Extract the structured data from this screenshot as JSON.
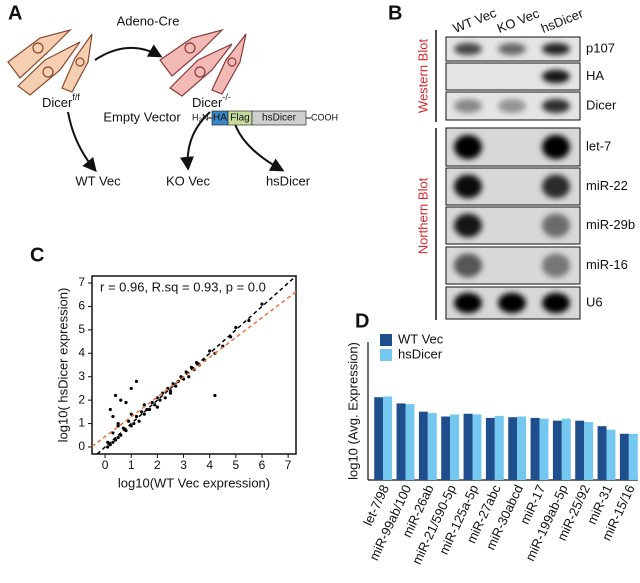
{
  "panel_labels": {
    "a": "A",
    "b": "B",
    "c": "C",
    "d": "D"
  },
  "panel_a": {
    "treatment": "Adeno-Cre",
    "parent": {
      "name": "Dicer",
      "superscript": "f/f"
    },
    "knockout": {
      "name": "Dicer",
      "superscript": "-/-"
    },
    "empty_vector": "Empty Vector",
    "construct": {
      "n_terminus": "H₂N",
      "tag1": "HA",
      "tag2": "Flag",
      "protein": "hsDicer",
      "c_terminus": "COOH"
    },
    "outcomes": [
      "WT Vec",
      "KO Vec",
      "hsDicer"
    ]
  },
  "panel_b": {
    "lanes": [
      "WT Vec",
      "KO Vec",
      "hsDicer"
    ],
    "western": {
      "label": "Western Blot",
      "rows": [
        "p107",
        "HA",
        "Dicer"
      ]
    },
    "northern": {
      "label": "Northern Blot",
      "rows": [
        "let-7",
        "miR-22",
        "miR-29b",
        "miR-16",
        "U6"
      ]
    }
  },
  "chart_data": [
    {
      "type": "scatter",
      "annotation": "r = 0.96, R.sq = 0.93, p = 0.0",
      "x_label": "log10(WT Vec expression)",
      "y_label": "log10( hsDicer expression)",
      "x": [
        0.1,
        0.2,
        0.3,
        0.3,
        0.4,
        0.5,
        0.5,
        0.6,
        0.7,
        0.8,
        0.9,
        1.0,
        1.0,
        1.1,
        1.2,
        1.3,
        1.4,
        1.5,
        1.5,
        1.6,
        1.7,
        1.8,
        1.9,
        2.0,
        2.0,
        2.1,
        2.2,
        2.3,
        2.4,
        2.5,
        2.6,
        2.7,
        2.8,
        2.9,
        3.0,
        3.1,
        3.2,
        3.3,
        3.4,
        3.5,
        3.6,
        3.8,
        4.0,
        4.2,
        4.5,
        4.8,
        5.0,
        5.5,
        6.0,
        0.2,
        0.4,
        0.6,
        0.3,
        0.5,
        1.2,
        0.8,
        1.0,
        2.5,
        4.2,
        0.1
      ],
      "y": [
        0.2,
        0.1,
        0.6,
        0.2,
        0.3,
        0.9,
        0.4,
        0.5,
        0.8,
        0.7,
        1.1,
        0.9,
        1.4,
        1.0,
        1.3,
        1.1,
        1.5,
        1.4,
        1.8,
        1.6,
        1.6,
        1.9,
        1.8,
        2.1,
        1.7,
        2.0,
        2.3,
        2.1,
        2.5,
        2.4,
        2.7,
        2.6,
        2.8,
        3.0,
        2.9,
        3.2,
        3.0,
        3.4,
        3.3,
        3.6,
        3.5,
        3.7,
        4.1,
        4.0,
        4.3,
        4.7,
        5.1,
        5.4,
        6.1,
        1.6,
        2.2,
        2.0,
        1.3,
        1.0,
        2.8,
        1.9,
        2.5,
        2.3,
        2.2,
        0.0
      ],
      "color": "#000000",
      "reference_color": "#000000",
      "fit_color": "#e8743b",
      "xlim": [
        -0.5,
        7.3
      ],
      "ylim": [
        -0.3,
        7.3
      ],
      "xticks": [
        0,
        1,
        2,
        3,
        4,
        5,
        6,
        7
      ],
      "yticks": [
        0,
        1,
        2,
        3,
        4,
        5,
        6,
        7
      ]
    },
    {
      "type": "bar",
      "y_label": "log10 (Avg. Expression)",
      "categories": [
        "let-7/98",
        "miR-99ab/100",
        "miR-26ab",
        "miR-21/590-5p",
        "miR-125a-5p",
        "miR-27abc",
        "miR-30abcd",
        "miR-17",
        "miR-199ab-5p",
        "miR-25/92",
        "miR-31",
        "miR-15/16"
      ],
      "series": [
        {
          "name": "WT Vec",
          "color": "#1f4e8c",
          "values": [
            6.0,
            5.55,
            4.95,
            4.6,
            4.8,
            4.5,
            4.55,
            4.5,
            4.3,
            4.3,
            3.9,
            3.35
          ]
        },
        {
          "name": "hsDicer",
          "color": "#74c7ef",
          "values": [
            6.05,
            5.5,
            4.85,
            4.75,
            4.75,
            4.65,
            4.6,
            4.45,
            4.45,
            4.2,
            3.65,
            3.35
          ]
        }
      ],
      "ylim": [
        0,
        10
      ],
      "legend": "upper left"
    }
  ]
}
